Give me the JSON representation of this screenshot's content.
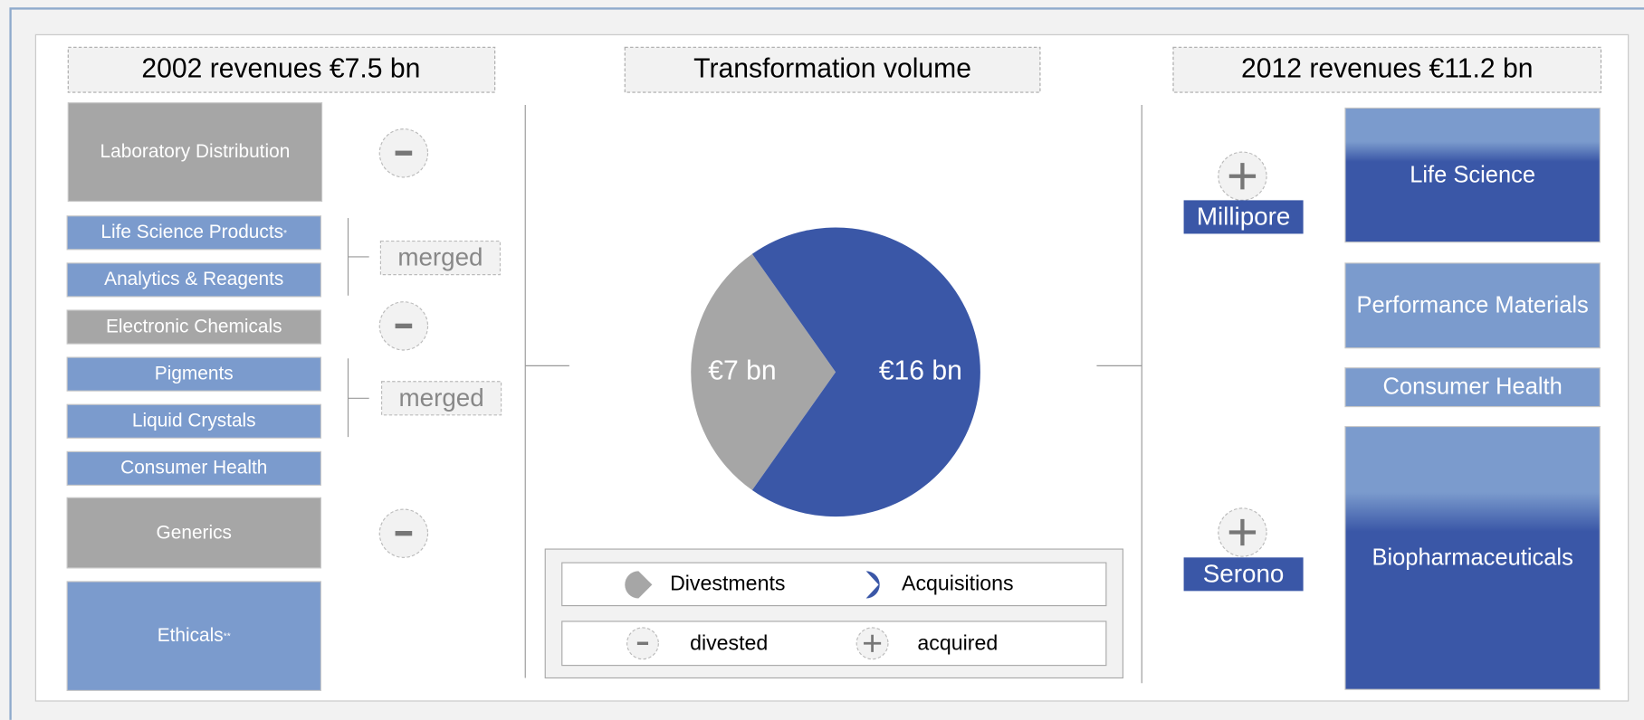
{
  "left": {
    "title": "2002 revenues €7.5 bn",
    "items": [
      {
        "label": "Laboratory Distribution",
        "color": "#a6a6a6"
      },
      {
        "label": "Life Science Products",
        "sup": "*",
        "color": "#7b9bcd"
      },
      {
        "label": "Analytics & Reagents",
        "color": "#7b9bcd"
      },
      {
        "label": "Electronic Chemicals",
        "color": "#a6a6a6"
      },
      {
        "label": "Pigments",
        "color": "#7b9bcd"
      },
      {
        "label": "Liquid Crystals",
        "color": "#7b9bcd"
      },
      {
        "label": "Consumer Health",
        "color": "#7b9bcd"
      },
      {
        "label": "Generics",
        "color": "#a6a6a6"
      },
      {
        "label": "Ethicals",
        "sup": "**",
        "color": "#7b9bcd"
      }
    ],
    "notes": [
      "merged",
      "merged"
    ]
  },
  "center": {
    "title": "Transformation volume",
    "pie": {
      "type": "pie",
      "values": [
        7,
        16
      ],
      "value_labels": [
        "€7 bn",
        "€16 bn"
      ],
      "colors": [
        "#a6a6a6",
        "#3a57a7"
      ]
    },
    "legend": {
      "pie": [
        "Divestments",
        "Acquisitions"
      ],
      "symbols": [
        "divested",
        "acquired"
      ]
    }
  },
  "right": {
    "title": "2012 revenues €11.2 bn",
    "acquisitions": [
      "Millipore",
      "Serono"
    ],
    "items": [
      {
        "label": "Life Science",
        "color": "#3a57a7"
      },
      {
        "label": "Performance Materials",
        "color": "#7b9bcd"
      },
      {
        "label": "Consumer Health",
        "color": "#7b9bcd"
      },
      {
        "label": "Biopharmaceuticals",
        "color": "#3a57a7"
      }
    ]
  }
}
